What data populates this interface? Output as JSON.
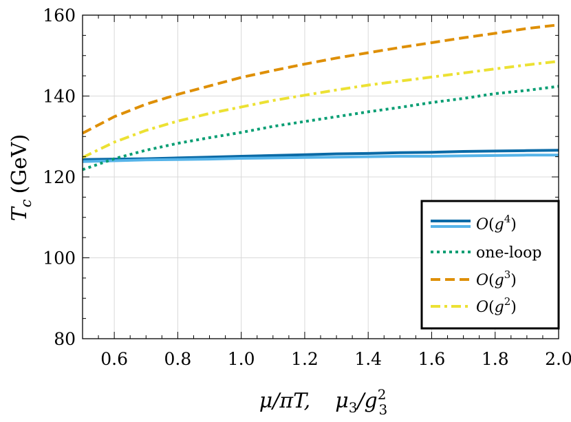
{
  "chart_data": {
    "type": "line",
    "xlabel": "μ/πT,    μ₃/g₃²",
    "ylabel": "T_c (GeV)",
    "xlim": [
      0.5,
      2.0
    ],
    "ylim": [
      80,
      160
    ],
    "xticks": [
      0.6,
      0.8,
      1.0,
      1.2,
      1.4,
      1.6,
      1.8,
      2.0
    ],
    "xtick_labels": [
      "0.6",
      "0.8",
      "1.0",
      "1.2",
      "1.4",
      "1.6",
      "1.8",
      "2.0"
    ],
    "yticks": [
      80,
      100,
      120,
      140,
      160
    ],
    "ytick_labels": [
      "80",
      "100",
      "120",
      "140",
      "160"
    ],
    "grid": true,
    "legend_position": "bottom-right",
    "x": [
      0.5,
      0.6,
      0.7,
      0.8,
      0.9,
      1.0,
      1.1,
      1.2,
      1.3,
      1.4,
      1.5,
      1.6,
      1.7,
      1.8,
      1.9,
      2.0
    ],
    "series": [
      {
        "name": "O(g⁴)",
        "legend_ref": 0,
        "style": "solid",
        "color": "#0a6aa6",
        "width": 4,
        "values": [
          124.3,
          124.4,
          124.5,
          124.7,
          124.9,
          125.1,
          125.3,
          125.5,
          125.7,
          125.8,
          126.0,
          126.1,
          126.3,
          126.4,
          126.5,
          126.6
        ]
      },
      {
        "name": "O(g⁴)",
        "legend_ref": 0,
        "style": "solid",
        "color": "#56b4e9",
        "width": 4,
        "values": [
          123.8,
          124.0,
          124.2,
          124.3,
          124.4,
          124.6,
          124.7,
          124.8,
          124.9,
          125.0,
          125.1,
          125.1,
          125.2,
          125.3,
          125.4,
          125.4
        ]
      },
      {
        "name": "one-loop",
        "legend_ref": 1,
        "style": "dotted",
        "color": "#079e73",
        "width": 4,
        "values": [
          121.8,
          124.5,
          126.6,
          128.3,
          129.7,
          131.0,
          132.5,
          133.7,
          134.9,
          136.1,
          137.2,
          138.4,
          139.4,
          140.6,
          141.4,
          142.4
        ]
      },
      {
        "name": "O(g³)",
        "legend_ref": 2,
        "style": "dashed",
        "color": "#de8f05",
        "width": 4,
        "values": [
          130.8,
          134.9,
          138.0,
          140.4,
          142.5,
          144.6,
          146.3,
          147.9,
          149.4,
          150.7,
          152.0,
          153.2,
          154.4,
          155.5,
          156.7,
          157.6
        ]
      },
      {
        "name": "O(g²)",
        "legend_ref": 3,
        "style": "dashdot",
        "color": "#ece133",
        "width": 4,
        "values": [
          124.8,
          128.6,
          131.5,
          133.8,
          135.7,
          137.3,
          138.9,
          140.2,
          141.5,
          142.7,
          143.7,
          144.7,
          145.7,
          146.7,
          147.7,
          148.6
        ]
      }
    ]
  },
  "legend": [
    {
      "label": "O(g⁴)",
      "colors": [
        "#0a6aa6",
        "#56b4e9"
      ],
      "style": "solid"
    },
    {
      "label": "one-loop",
      "colors": [
        "#079e73"
      ],
      "style": "dotted"
    },
    {
      "label": "O(g³)",
      "colors": [
        "#de8f05"
      ],
      "style": "dashed"
    },
    {
      "label": "O(g²)",
      "colors": [
        "#ece133"
      ],
      "style": "dashdot"
    }
  ]
}
